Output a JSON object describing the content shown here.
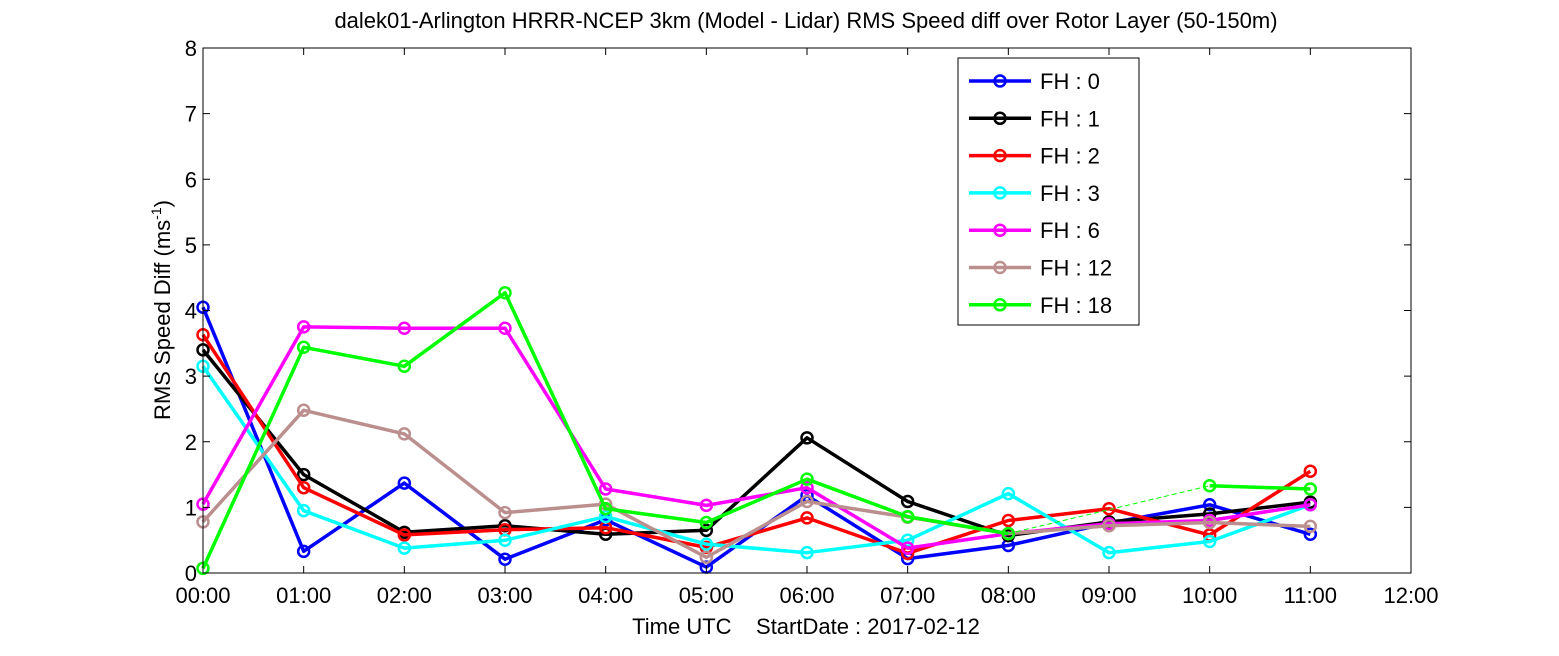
{
  "chart_data": {
    "type": "line",
    "title": "dalek01-Arlington HRRR-NCEP 3km (Model - Lidar) RMS Speed diff over Rotor Layer (50-150m)",
    "xlabel": "Time UTC    StartDate : 2017-02-12",
    "ylabel_main": "RMS Speed Diff (ms",
    "ylabel_sup": "-1",
    "ylabel_close": ")",
    "x_ticks": [
      "00:00",
      "01:00",
      "02:00",
      "03:00",
      "04:00",
      "05:00",
      "06:00",
      "07:00",
      "08:00",
      "09:00",
      "10:00",
      "11:00",
      "12:00"
    ],
    "y_ticks": [
      "0",
      "1",
      "2",
      "3",
      "4",
      "5",
      "6",
      "7",
      "8"
    ],
    "xlim": [
      0,
      12
    ],
    "ylim": [
      0,
      8
    ],
    "grid": false,
    "legend_position": "top-right",
    "series": [
      {
        "name": "FH : 0",
        "color": "#0000ff",
        "x": [
          0,
          1,
          2,
          3,
          4,
          5,
          6,
          7,
          8,
          9,
          10,
          11
        ],
        "y": [
          4.05,
          0.33,
          1.37,
          0.21,
          0.81,
          0.09,
          1.18,
          0.22,
          0.42,
          0.76,
          1.04,
          0.59
        ]
      },
      {
        "name": "FH : 1",
        "color": "#000000",
        "x": [
          0,
          1,
          2,
          3,
          4,
          5,
          6,
          7,
          8,
          9,
          10,
          11
        ],
        "y": [
          3.4,
          1.5,
          0.62,
          0.72,
          0.59,
          0.65,
          2.06,
          1.09,
          0.57,
          0.78,
          0.9,
          1.08
        ]
      },
      {
        "name": "FH : 2",
        "color": "#ff0000",
        "x": [
          0,
          1,
          2,
          3,
          4,
          5,
          6,
          7,
          8,
          9,
          10,
          11
        ],
        "y": [
          3.63,
          1.3,
          0.58,
          0.66,
          0.69,
          0.39,
          0.84,
          0.3,
          0.8,
          0.98,
          0.58,
          1.55
        ]
      },
      {
        "name": "FH : 3",
        "color": "#00ffff",
        "x": [
          0,
          1,
          2,
          3,
          4,
          5,
          6,
          7,
          8,
          9,
          10,
          11
        ],
        "y": [
          3.15,
          0.95,
          0.38,
          0.5,
          0.86,
          0.44,
          0.31,
          0.5,
          1.21,
          0.31,
          0.48,
          1.04
        ]
      },
      {
        "name": "FH : 6",
        "color": "#ff00ff",
        "x": [
          0,
          1,
          2,
          3,
          4,
          5,
          6,
          7,
          8,
          9,
          10,
          11
        ],
        "y": [
          1.05,
          3.75,
          3.73,
          3.73,
          1.28,
          1.03,
          1.3,
          0.38,
          0.6,
          0.75,
          0.8,
          1.04
        ]
      },
      {
        "name": "FH : 12",
        "color": "#bc8f8f",
        "x": [
          0,
          1,
          2,
          3,
          4,
          5,
          6,
          7,
          8,
          9,
          10,
          11
        ],
        "y": [
          0.78,
          2.48,
          2.12,
          0.92,
          1.05,
          0.24,
          1.09,
          0.85,
          0.6,
          0.72,
          0.77,
          0.71
        ]
      },
      {
        "name": "FH : 18",
        "color": "#00ff00",
        "x": [
          0,
          1,
          2,
          3,
          4,
          5,
          6,
          7,
          8,
          10,
          11
        ],
        "y": [
          0.07,
          3.44,
          3.15,
          4.27,
          0.98,
          0.77,
          1.43,
          0.86,
          0.6,
          1.33,
          1.28
        ],
        "dashed_gap": [
          8,
          10
        ]
      }
    ]
  }
}
